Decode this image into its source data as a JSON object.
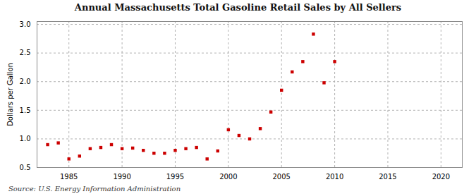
{
  "chart_data": {
    "type": "scatter",
    "title": "Annual Massachusetts Total Gasoline Retail Sales by All Sellers",
    "ylabel": "Dollars per Gallon",
    "source": "Source: U.S. Energy Information Administration",
    "x": [
      1983,
      1984,
      1985,
      1986,
      1987,
      1988,
      1989,
      1990,
      1991,
      1992,
      1993,
      1994,
      1995,
      1996,
      1997,
      1998,
      1999,
      2000,
      2001,
      2002,
      2003,
      2004,
      2005,
      2006,
      2007,
      2008,
      2009,
      2010
    ],
    "values": [
      0.9,
      0.93,
      0.65,
      0.7,
      0.83,
      0.85,
      0.9,
      0.83,
      0.84,
      0.8,
      0.75,
      0.75,
      0.8,
      0.83,
      0.85,
      0.65,
      0.79,
      1.16,
      1.06,
      1.0,
      1.18,
      1.47,
      1.85,
      2.17,
      2.35,
      2.83,
      1.98,
      2.35
    ],
    "color": "#cc0000",
    "marker": "square",
    "xlim": [
      1982,
      2022
    ],
    "ylim": [
      0.5,
      3.05
    ],
    "xticks": [
      1985,
      1990,
      1995,
      2000,
      2005,
      2010,
      2015,
      2020
    ],
    "yticks": [
      0.5,
      {
        "value": 1.0,
        "label": "1.0"
      },
      1.5,
      {
        "value": 2.0,
        "label": "2.0"
      },
      2.5,
      {
        "value": 3.0,
        "label": "3.0"
      }
    ],
    "grid": true
  }
}
